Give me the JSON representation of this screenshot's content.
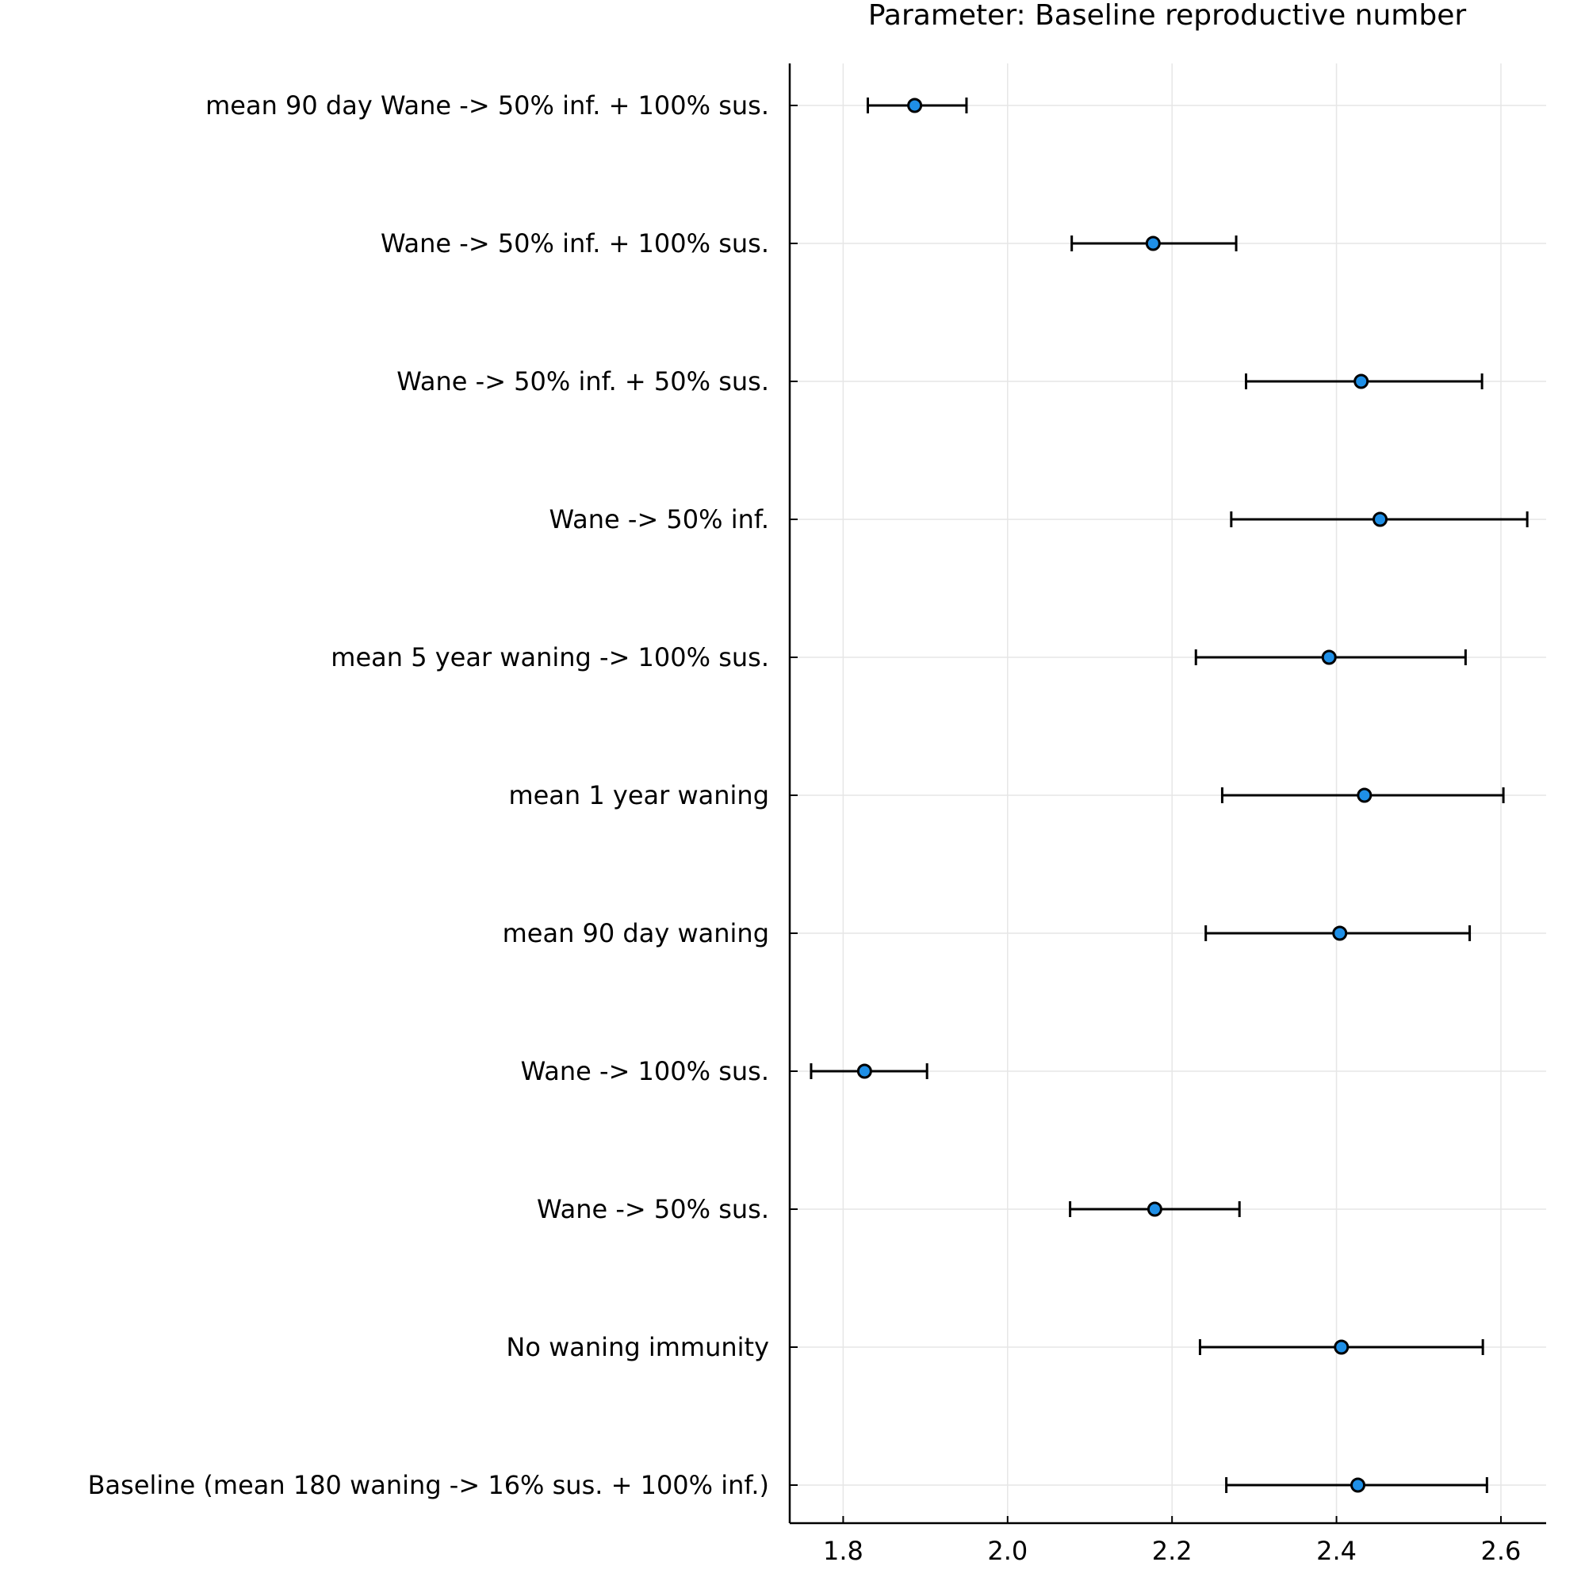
{
  "chart_data": {
    "type": "scatter",
    "title": "Parameter: Baseline reproductive number",
    "xlabel": "",
    "ylabel": "",
    "xlim": [
      1.735,
      2.655
    ],
    "grid": true,
    "legend": "none",
    "marker_color": "#1f8fe6",
    "xticks": [
      {
        "value": 1.8,
        "label": "1.8"
      },
      {
        "value": 2.0,
        "label": "2.0"
      },
      {
        "value": 2.2,
        "label": "2.2"
      },
      {
        "value": 2.4,
        "label": "2.4"
      },
      {
        "value": 2.6,
        "label": "2.6"
      }
    ],
    "categories": [
      "mean 90 day Wane -> 50% inf. + 100% sus.",
      "Wane -> 50% inf. + 100% sus.",
      "Wane -> 50% inf. + 50% sus.",
      "Wane -> 50% inf.",
      "mean 5 year waning -> 100% sus.",
      "mean 1 year waning",
      "mean 90 day waning",
      "Wane -> 100% sus.",
      "Wane -> 50% sus.",
      "No waning immunity",
      "Baseline (mean 180 waning -> 16% sus. + 100% inf.)"
    ],
    "points": [
      {
        "estimate": 1.887,
        "lower": 1.83,
        "upper": 1.95
      },
      {
        "estimate": 2.177,
        "lower": 2.078,
        "upper": 2.278
      },
      {
        "estimate": 2.43,
        "lower": 2.29,
        "upper": 2.577
      },
      {
        "estimate": 2.453,
        "lower": 2.272,
        "upper": 2.632
      },
      {
        "estimate": 2.391,
        "lower": 2.229,
        "upper": 2.557
      },
      {
        "estimate": 2.434,
        "lower": 2.261,
        "upper": 2.603
      },
      {
        "estimate": 2.404,
        "lower": 2.241,
        "upper": 2.562
      },
      {
        "estimate": 1.826,
        "lower": 1.761,
        "upper": 1.902
      },
      {
        "estimate": 2.179,
        "lower": 2.076,
        "upper": 2.282
      },
      {
        "estimate": 2.406,
        "lower": 2.234,
        "upper": 2.578
      },
      {
        "estimate": 2.426,
        "lower": 2.266,
        "upper": 2.583
      }
    ]
  }
}
